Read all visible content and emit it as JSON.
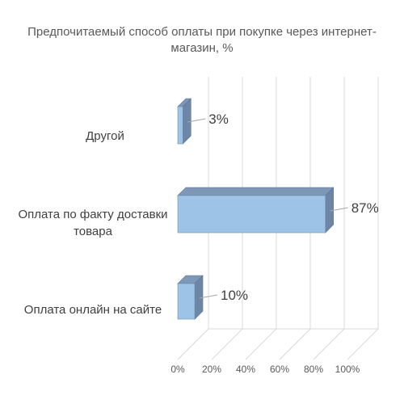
{
  "chart_data": {
    "type": "bar",
    "orientation": "horizontal",
    "style": "3d",
    "title": "Предпочитаемый способ оплаты при покупке через интернет-магазин, %",
    "categories": [
      "Другой",
      "Оплата по факту доставки товара",
      "Оплата онлайн на сайте"
    ],
    "values": [
      3,
      87,
      10
    ],
    "value_labels": [
      "3%",
      "87%",
      "10%"
    ],
    "xlim": [
      0,
      100
    ],
    "x_ticks": [
      "0%",
      "20%",
      "40%",
      "60%",
      "80%",
      "100%"
    ],
    "grid": true,
    "legend": false,
    "colors": {
      "bar_front": "#9DC3E6",
      "bar_side": "#6E86A6",
      "bar_top": "#7F97B7",
      "gridline": "#D9D9D9"
    }
  }
}
